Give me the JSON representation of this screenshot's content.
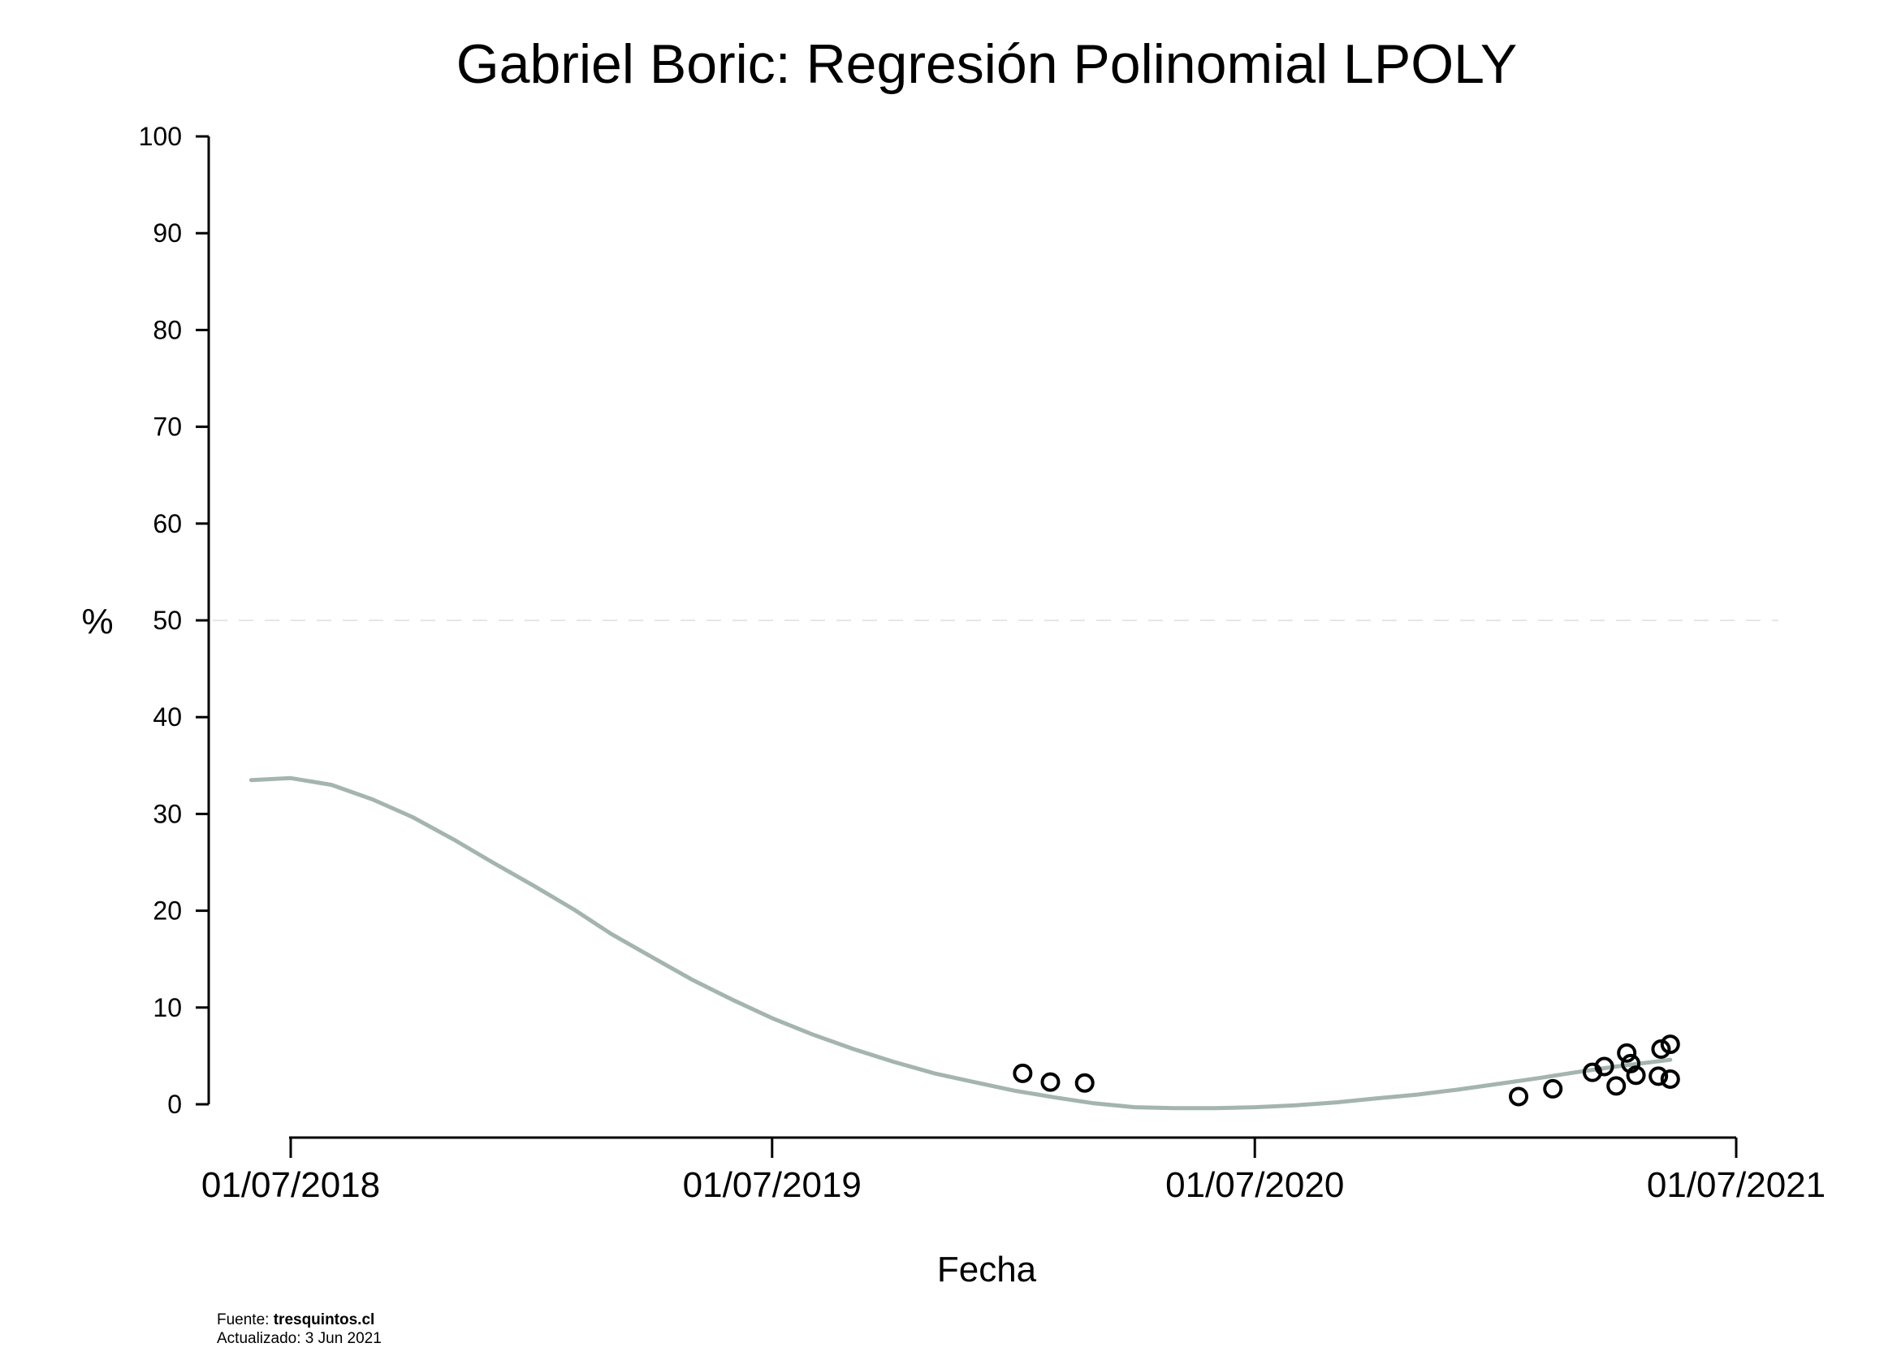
{
  "chart_data": {
    "type": "scatter",
    "title": "Gabriel Boric: Regresión Polinomial LPOLY",
    "xlabel": "Fecha",
    "ylabel": "%",
    "ylim": [
      0,
      100
    ],
    "yticks": [
      0,
      10,
      20,
      30,
      40,
      50,
      60,
      70,
      80,
      90,
      100
    ],
    "xlim": [
      "2018-06-01",
      "2021-07-01"
    ],
    "xticks": [
      "2018-07-01",
      "2019-07-01",
      "2020-07-01",
      "2021-07-01"
    ],
    "xtick_labels": [
      "01/07/2018",
      "01/07/2019",
      "01/07/2020",
      "01/07/2021"
    ],
    "reference_line": {
      "y": 50,
      "style": "dashed"
    },
    "colors": {
      "fit_line": "#a4b4ae",
      "points": "#000000",
      "reference_line": "#e6e6e6"
    },
    "series": [
      {
        "type": "scatter",
        "x": [
          "2020-01-07",
          "2020-01-28",
          "2020-02-23",
          "2021-01-17",
          "2021-02-12",
          "2021-03-14",
          "2021-03-23",
          "2021-04-01",
          "2021-04-09",
          "2021-04-12",
          "2021-04-16",
          "2021-05-03",
          "2021-05-05",
          "2021-05-12",
          "2021-05-12"
        ],
        "y": [
          3.2,
          2.3,
          2.2,
          0.8,
          1.6,
          3.3,
          3.9,
          1.9,
          5.3,
          4.2,
          3.0,
          2.9,
          5.7,
          6.2,
          2.6
        ]
      },
      {
        "type": "line",
        "x": [
          "2018-06-01",
          "2018-07-01",
          "2018-08-01",
          "2018-09-01",
          "2018-10-01",
          "2018-11-01",
          "2018-12-01",
          "2019-01-01",
          "2019-02-01",
          "2019-03-01",
          "2019-04-01",
          "2019-05-01",
          "2019-06-01",
          "2019-07-01",
          "2019-08-01",
          "2019-09-01",
          "2019-10-01",
          "2019-11-01",
          "2019-12-01",
          "2020-01-01",
          "2020-02-01",
          "2020-03-01",
          "2020-04-01",
          "2020-05-01",
          "2020-06-01",
          "2020-07-01",
          "2020-08-01",
          "2020-09-01",
          "2020-10-01",
          "2020-11-01",
          "2020-12-01",
          "2021-01-01",
          "2021-02-01",
          "2021-03-01",
          "2021-04-01",
          "2021-05-12"
        ],
        "y": [
          33.5,
          33.7,
          33.0,
          31.5,
          29.7,
          27.4,
          25.0,
          22.6,
          20.1,
          17.6,
          15.2,
          12.9,
          10.8,
          8.9,
          7.2,
          5.7,
          4.4,
          3.2,
          2.3,
          1.4,
          0.7,
          0.1,
          -0.3,
          -0.4,
          -0.4,
          -0.3,
          -0.1,
          0.2,
          0.6,
          1.0,
          1.5,
          2.1,
          2.7,
          3.3,
          3.9,
          4.6
        ]
      }
    ]
  },
  "footer": {
    "source_label": "Fuente: ",
    "source_value": "tresquintos.cl",
    "updated": "Actualizado: 3 Jun 2021"
  }
}
